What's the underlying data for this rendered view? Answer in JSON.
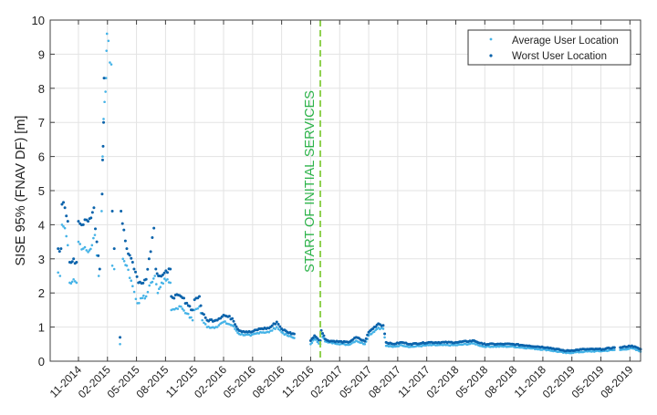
{
  "chart_data": {
    "type": "scatter",
    "title": "",
    "xlabel": "",
    "ylabel": "SISE 95% (FNAV DF) [m]",
    "x_units": "months since 01-2014",
    "xlim": [
      7.08,
      68.1
    ],
    "ylim": [
      0,
      10
    ],
    "yticks": [
      0,
      1,
      2,
      3,
      4,
      5,
      6,
      7,
      8,
      9,
      10
    ],
    "xticks": [
      {
        "x": 10,
        "label": "11-2014"
      },
      {
        "x": 13,
        "label": "02-2015"
      },
      {
        "x": 16,
        "label": "05-2015"
      },
      {
        "x": 19,
        "label": "08-2015"
      },
      {
        "x": 22,
        "label": "11-2015"
      },
      {
        "x": 25,
        "label": "02-2016"
      },
      {
        "x": 28,
        "label": "05-2016"
      },
      {
        "x": 31,
        "label": "08-2016"
      },
      {
        "x": 34,
        "label": "11-2016"
      },
      {
        "x": 37,
        "label": "02-2017"
      },
      {
        "x": 40,
        "label": "05-2017"
      },
      {
        "x": 43,
        "label": "08-2017"
      },
      {
        "x": 46,
        "label": "11-2017"
      },
      {
        "x": 49,
        "label": "02-2018"
      },
      {
        "x": 52,
        "label": "05-2018"
      },
      {
        "x": 55,
        "label": "08-2018"
      },
      {
        "x": 58,
        "label": "11-2018"
      },
      {
        "x": 61,
        "label": "02-2019"
      },
      {
        "x": 64,
        "label": "05-2019"
      },
      {
        "x": 67,
        "label": "08-2019"
      }
    ],
    "grid": true,
    "legend_position": "top-right",
    "annotation": {
      "x": 35.0,
      "label": "START OF INITIAL SERVICES",
      "color": "#2db34a",
      "line_color": "#8fd14f"
    },
    "series": [
      {
        "name": "Average User Location",
        "color": "#45b3e7",
        "points": [
          [
            7.9,
            2.6
          ],
          [
            8.1,
            2.5
          ],
          [
            8.3,
            4.0
          ],
          [
            8.6,
            3.9
          ],
          [
            8.9,
            3.4
          ],
          [
            9.1,
            2.3
          ],
          [
            9.5,
            2.4
          ],
          [
            9.8,
            2.3
          ],
          [
            10.0,
            3.5
          ],
          [
            10.5,
            3.3
          ],
          [
            11.0,
            3.2
          ],
          [
            11.4,
            3.4
          ],
          [
            11.7,
            3.7
          ],
          [
            11.9,
            3.1
          ],
          [
            12.1,
            2.5
          ],
          null,
          [
            12.4,
            4.4
          ],
          [
            12.5,
            6.0
          ],
          [
            12.6,
            7.1
          ],
          [
            12.7,
            7.6
          ],
          [
            12.8,
            7.9
          ],
          [
            12.85,
            8.3
          ],
          [
            12.9,
            9.1
          ],
          [
            12.95,
            9.6
          ],
          [
            13.4,
            8.7
          ],
          null,
          [
            13.5,
            2.8
          ],
          [
            13.7,
            2.7
          ],
          null,
          [
            14.3,
            0.5
          ],
          null,
          [
            14.6,
            3.0
          ],
          [
            15.0,
            2.8
          ],
          [
            15.6,
            2.2
          ],
          [
            16.1,
            1.7
          ],
          [
            16.6,
            1.85
          ],
          [
            17.0,
            1.9
          ],
          [
            17.5,
            2.3
          ],
          [
            17.9,
            2.5
          ],
          [
            18.2,
            2.0
          ],
          [
            18.6,
            2.3
          ],
          [
            19.2,
            2.4
          ],
          [
            19.5,
            2.3
          ],
          [
            19.6,
            1.5
          ],
          [
            20.1,
            1.55
          ],
          [
            20.6,
            1.6
          ],
          [
            21.2,
            1.4
          ],
          [
            21.8,
            1.2
          ],
          [
            22.0,
            1.5
          ],
          [
            22.5,
            1.6
          ],
          [
            22.8,
            1.2
          ],
          [
            23.3,
            1.0
          ],
          [
            24.2,
            1.0
          ],
          [
            25.0,
            1.15
          ],
          [
            25.9,
            1.05
          ],
          [
            26.6,
            0.8
          ],
          [
            27.8,
            0.75
          ],
          [
            28.8,
            0.85
          ],
          [
            29.7,
            0.85
          ],
          [
            30.5,
            1.0
          ],
          [
            31.0,
            0.85
          ],
          [
            31.6,
            0.75
          ],
          [
            32.3,
            0.68
          ],
          null,
          [
            34.0,
            0.5
          ],
          [
            34.4,
            0.65
          ],
          [
            35.0,
            0.5
          ],
          [
            35.1,
            0.8
          ],
          [
            35.5,
            0.58
          ],
          [
            35.8,
            0.55
          ],
          [
            37.9,
            0.48
          ],
          [
            38.7,
            0.6
          ],
          [
            39.6,
            0.5
          ],
          [
            40.0,
            0.75
          ],
          [
            41.0,
            0.98
          ],
          [
            41.5,
            0.95
          ],
          [
            41.8,
            0.45
          ],
          [
            42.5,
            0.42
          ],
          [
            43.4,
            0.47
          ],
          [
            44.3,
            0.42
          ],
          [
            46.2,
            0.47
          ],
          [
            49.0,
            0.47
          ],
          [
            50.9,
            0.52
          ],
          [
            51.8,
            0.43
          ],
          [
            54.7,
            0.43
          ],
          [
            56.6,
            0.38
          ],
          [
            58.5,
            0.33
          ],
          [
            60.4,
            0.24
          ],
          [
            62.3,
            0.28
          ],
          [
            64.2,
            0.3
          ],
          [
            65.4,
            0.33
          ],
          null,
          [
            66.0,
            0.33
          ],
          [
            67.2,
            0.38
          ],
          [
            68.1,
            0.28
          ]
        ]
      },
      {
        "name": "Worst User Location",
        "color": "#0b63ab",
        "points": [
          [
            7.9,
            3.3
          ],
          [
            8.2,
            3.3
          ],
          [
            8.3,
            4.6
          ],
          [
            8.6,
            4.5
          ],
          [
            8.9,
            4.1
          ],
          [
            9.1,
            2.9
          ],
          [
            9.5,
            3.0
          ],
          [
            9.8,
            2.9
          ],
          [
            10.0,
            4.1
          ],
          [
            10.5,
            4.0
          ],
          [
            11.0,
            4.1
          ],
          [
            11.3,
            4.2
          ],
          [
            11.6,
            4.5
          ],
          [
            11.9,
            3.5
          ],
          [
            12.2,
            2.7
          ],
          null,
          [
            12.45,
            4.9
          ],
          [
            12.5,
            5.9
          ],
          [
            12.55,
            6.3
          ],
          [
            12.6,
            7.0
          ],
          [
            12.65,
            8.3
          ],
          null,
          [
            13.5,
            4.4
          ],
          [
            13.7,
            3.3
          ],
          null,
          [
            14.3,
            0.7
          ],
          null,
          [
            14.4,
            4.4
          ],
          [
            15.0,
            3.3
          ],
          [
            15.6,
            2.9
          ],
          [
            16.2,
            2.3
          ],
          [
            17.0,
            2.4
          ],
          [
            17.3,
            3.0
          ],
          [
            17.8,
            3.9
          ],
          [
            18.0,
            2.7
          ],
          [
            18.4,
            2.5
          ],
          [
            19.2,
            2.6
          ],
          [
            19.5,
            2.7
          ],
          [
            19.6,
            1.9
          ],
          [
            20.6,
            1.9
          ],
          [
            21.2,
            1.7
          ],
          [
            21.8,
            1.5
          ],
          [
            22.0,
            1.8
          ],
          [
            22.5,
            1.9
          ],
          [
            22.8,
            1.4
          ],
          [
            23.3,
            1.2
          ],
          [
            24.2,
            1.2
          ],
          [
            25.0,
            1.35
          ],
          [
            25.9,
            1.25
          ],
          [
            26.6,
            0.9
          ],
          [
            27.8,
            0.85
          ],
          [
            28.8,
            0.95
          ],
          [
            29.7,
            0.97
          ],
          [
            30.5,
            1.15
          ],
          [
            31.0,
            0.95
          ],
          [
            31.6,
            0.85
          ],
          [
            32.3,
            0.8
          ],
          null,
          [
            34.0,
            0.6
          ],
          [
            34.4,
            0.75
          ],
          [
            35.0,
            0.6
          ],
          [
            35.1,
            0.9
          ],
          [
            35.5,
            0.65
          ],
          [
            35.8,
            0.6
          ],
          [
            37.9,
            0.55
          ],
          [
            38.7,
            0.7
          ],
          [
            39.6,
            0.58
          ],
          [
            40.0,
            0.85
          ],
          [
            41.0,
            1.1
          ],
          [
            41.5,
            1.05
          ],
          [
            41.8,
            0.55
          ],
          [
            42.5,
            0.5
          ],
          [
            43.4,
            0.55
          ],
          [
            44.3,
            0.5
          ],
          [
            46.2,
            0.55
          ],
          [
            49.0,
            0.55
          ],
          [
            50.9,
            0.6
          ],
          [
            51.8,
            0.5
          ],
          [
            54.7,
            0.5
          ],
          [
            56.6,
            0.45
          ],
          [
            58.5,
            0.4
          ],
          [
            60.4,
            0.3
          ],
          [
            62.3,
            0.35
          ],
          [
            64.2,
            0.35
          ],
          [
            65.4,
            0.4
          ],
          null,
          [
            66.0,
            0.4
          ],
          [
            67.2,
            0.45
          ],
          [
            68.1,
            0.35
          ]
        ]
      }
    ]
  }
}
